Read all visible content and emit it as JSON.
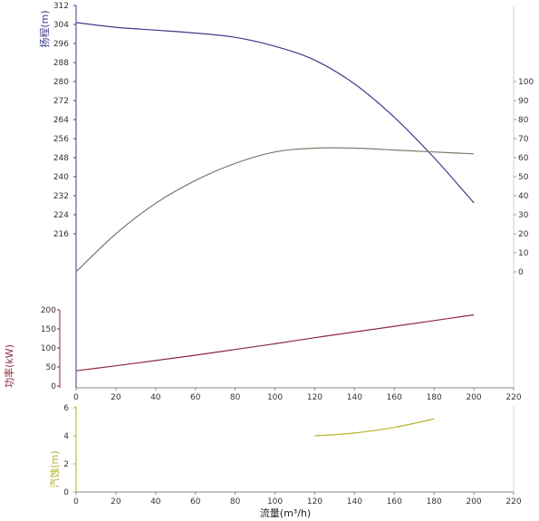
{
  "chart_data": [
    {
      "type": "line",
      "xlabel": "流量(m³/h)",
      "xlim": [
        0,
        220
      ],
      "x_ticks": [
        "0",
        "20",
        "40",
        "60",
        "80",
        "100",
        "120",
        "140",
        "160",
        "180",
        "200",
        "220"
      ],
      "axes": {
        "head": {
          "label": "扬程(m)",
          "ylim": [
            208,
            312
          ],
          "ticks": [
            "216",
            "224",
            "232",
            "240",
            "248",
            "256",
            "264",
            "272",
            "280",
            "288",
            "296",
            "304",
            "312"
          ],
          "color": "#3a3a8c",
          "side": "left"
        },
        "efficiency": {
          "label": "",
          "ylim": [
            0,
            100
          ],
          "ticks": [
            "0",
            "10",
            "20",
            "30",
            "40",
            "50",
            "60",
            "70",
            "80",
            "90",
            "100"
          ],
          "color": "#555555",
          "side": "right"
        },
        "power": {
          "label": "功率(kW)",
          "ylim": [
            0,
            200
          ],
          "ticks": [
            "0",
            "50",
            "100",
            "150",
            "200"
          ],
          "color": "#8c2a3a",
          "side": "left"
        }
      },
      "series": [
        {
          "axis": "head",
          "color": "#3a3a8c",
          "x": [
            0,
            20,
            40,
            60,
            80,
            100,
            120,
            140,
            160,
            180,
            200
          ],
          "y": [
            304.8,
            302.8,
            301.6,
            300.4,
            298.6,
            294.8,
            289.0,
            279.0,
            265.0,
            248.0,
            229.0
          ]
        },
        {
          "axis": "efficiency",
          "color": "#7a7a6a",
          "x": [
            0,
            20,
            40,
            60,
            80,
            100,
            120,
            140,
            160,
            180,
            200
          ],
          "y": [
            0,
            20,
            36,
            48,
            57,
            63,
            65,
            65,
            64,
            63,
            62
          ]
        },
        {
          "axis": "power",
          "color": "#8c2a3a",
          "x": [
            0,
            20,
            40,
            60,
            80,
            100,
            120,
            140,
            160,
            180,
            200
          ],
          "y": [
            40,
            53,
            67,
            81,
            96,
            111,
            127,
            142,
            157,
            172,
            187
          ]
        }
      ]
    },
    {
      "type": "line",
      "xlabel": "流量(m³/h)",
      "xlim": [
        0,
        220
      ],
      "x_ticks": [
        "0",
        "20",
        "40",
        "60",
        "80",
        "100",
        "120",
        "140",
        "160",
        "180",
        "200",
        "220"
      ],
      "axes": {
        "npsh": {
          "label": "汽蚀(m)",
          "ylim": [
            0,
            6
          ],
          "ticks": [
            "0",
            "2",
            "4",
            "6"
          ],
          "color": "#b5b52a",
          "side": "left"
        }
      },
      "series": [
        {
          "axis": "npsh",
          "color": "#b5b52a",
          "x": [
            120,
            140,
            160,
            180
          ],
          "y": [
            4.0,
            4.2,
            4.6,
            5.2
          ]
        }
      ]
    }
  ]
}
